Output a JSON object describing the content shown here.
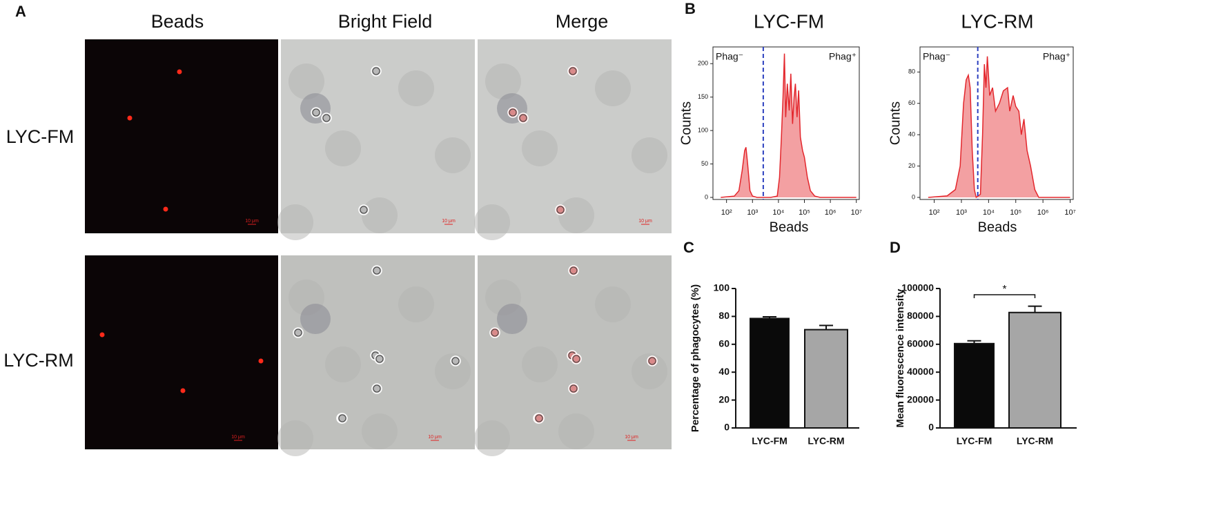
{
  "panel_labels": [
    "A",
    "B",
    "C",
    "D"
  ],
  "panel_a": {
    "column_headers": [
      "Beads",
      "Bright Field",
      "Merge"
    ],
    "row_labels": [
      "LYC-FM",
      "LYC-RM"
    ],
    "scale_bar": "10 μm"
  },
  "chart_data": [
    {
      "type": "area",
      "title": "LYC-FM",
      "x_label": "Beads",
      "y_label": "Counts",
      "log_x": true,
      "x": [
        60,
        200,
        300,
        400,
        500,
        560,
        650,
        800,
        1000,
        1500,
        5000,
        9000,
        11000,
        13000,
        15000,
        17000,
        19000,
        22000,
        26000,
        30000,
        35000,
        40000,
        45000,
        52000,
        60000,
        70000,
        85000,
        100000,
        130000,
        170000,
        250000,
        400000,
        10000000
      ],
      "values": [
        0,
        2,
        10,
        40,
        70,
        75,
        50,
        10,
        2,
        0,
        0,
        2,
        30,
        90,
        150,
        215,
        120,
        170,
        130,
        185,
        110,
        150,
        170,
        120,
        160,
        90,
        70,
        60,
        30,
        10,
        2,
        0,
        0
      ],
      "color": "#e3262c",
      "fill_color": "#f3a0a2",
      "xlim": [
        30,
        13000000
      ],
      "xticks": [
        {
          "value": 100,
          "label": "10²"
        },
        {
          "value": 1000,
          "label": "10³"
        },
        {
          "value": 10000,
          "label": "10⁴"
        },
        {
          "value": 100000,
          "label": "10⁵"
        },
        {
          "value": 1000000,
          "label": "10⁶"
        },
        {
          "value": 10000000,
          "label": "10⁷"
        }
      ],
      "ylim": [
        0,
        225
      ],
      "yticks": [
        0,
        50,
        100,
        150,
        200
      ],
      "gate": 2600,
      "gate_color": "#2b3fbf",
      "gate_labels": [
        "Phag⁻",
        "Phag⁺"
      ]
    },
    {
      "type": "area",
      "title": "LYC-RM",
      "x_label": "Beads",
      "y_label": "Counts",
      "log_x": true,
      "x": [
        60,
        300,
        600,
        900,
        1200,
        1500,
        1800,
        2100,
        2500,
        3000,
        3500,
        5000,
        6000,
        7000,
        8000,
        9000,
        11000,
        14000,
        18000,
        25000,
        35000,
        50000,
        60000,
        80000,
        100000,
        130000,
        160000,
        200000,
        260000,
        350000,
        500000,
        700000,
        10000000
      ],
      "values": [
        0,
        1,
        5,
        20,
        60,
        75,
        78,
        70,
        30,
        5,
        0,
        2,
        40,
        85,
        70,
        90,
        65,
        70,
        55,
        60,
        68,
        70,
        55,
        65,
        58,
        55,
        40,
        50,
        30,
        20,
        5,
        0,
        0
      ],
      "color": "#e3262c",
      "fill_color": "#f3a0a2",
      "xlim": [
        30,
        13000000
      ],
      "xticks": [
        {
          "value": 100,
          "label": "10²"
        },
        {
          "value": 1000,
          "label": "10³"
        },
        {
          "value": 10000,
          "label": "10⁴"
        },
        {
          "value": 100000,
          "label": "10⁵"
        },
        {
          "value": 1000000,
          "label": "10⁶"
        },
        {
          "value": 10000000,
          "label": "10⁷"
        }
      ],
      "ylim": [
        0,
        96
      ],
      "yticks": [
        0,
        20,
        40,
        60,
        80
      ],
      "gate": 4000,
      "gate_color": "#2b3fbf",
      "gate_labels": [
        "Phag⁻",
        "Phag⁺"
      ]
    },
    {
      "type": "bar",
      "y_label": "Percentage of phagocytes (%)",
      "categories": [
        "LYC-FM",
        "LYC-RM"
      ],
      "values": [
        78.5,
        70.5
      ],
      "errors": [
        1.2,
        3
      ],
      "colors": [
        "#0a0a0a",
        "#a6a6a6"
      ],
      "ylim": [
        0,
        100
      ],
      "yticks": [
        0,
        20,
        40,
        60,
        80,
        100
      ]
    },
    {
      "type": "bar",
      "y_label": "Mean fluorescence intensity",
      "categories": [
        "LYC-FM",
        "LYC-RM"
      ],
      "values": [
        60500,
        82800
      ],
      "errors": [
        2000,
        4500
      ],
      "colors": [
        "#0a0a0a",
        "#a6a6a6"
      ],
      "ylim": [
        0,
        100000
      ],
      "yticks": [
        0,
        20000,
        40000,
        60000,
        80000,
        100000
      ],
      "annotation": "*"
    }
  ]
}
